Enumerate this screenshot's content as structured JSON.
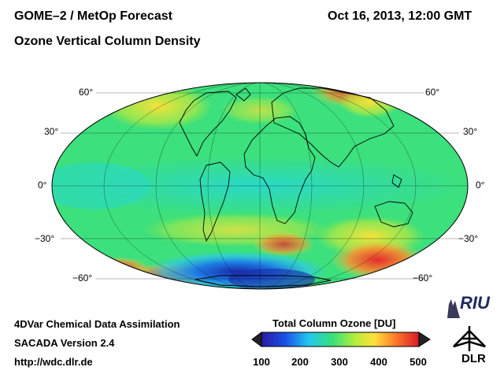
{
  "header": {
    "title_line1": "GOME–2 / MetOp Forecast",
    "title_line2": "Ozone Vertical Column Density",
    "datetime": "Oct 16, 2013, 12:00 GMT"
  },
  "map": {
    "projection": "mollweide",
    "latitude_labels": {
      "lat_60n_left": "60",
      "lat_60n_right": "60",
      "lat_30n_left": "30",
      "lat_30n_right": "30",
      "lat_0_left": "0",
      "lat_0_right": "0",
      "lat_30s_left": "−30",
      "lat_30s_right": "−30",
      "lat_60s_left": "−60",
      "lat_60s_right": "−60"
    },
    "colors": {
      "background_field": "#39e07a",
      "ozone_hole": "#1450d8",
      "high_ozone": "#e8282a",
      "mid_high": "#ffd23a"
    }
  },
  "footer": {
    "line1": "4DVar Chemical Data Assimilation",
    "line2": "SACADA Version 2.4",
    "line3": "http://wdc.dlr.de"
  },
  "colorbar": {
    "title": "Total Column Ozone [DU]",
    "ticks": [
      "100",
      "200",
      "300",
      "400",
      "500"
    ],
    "min": 100,
    "max": 500
  },
  "logos": {
    "riu": "RIU",
    "dlr": "DLR"
  }
}
